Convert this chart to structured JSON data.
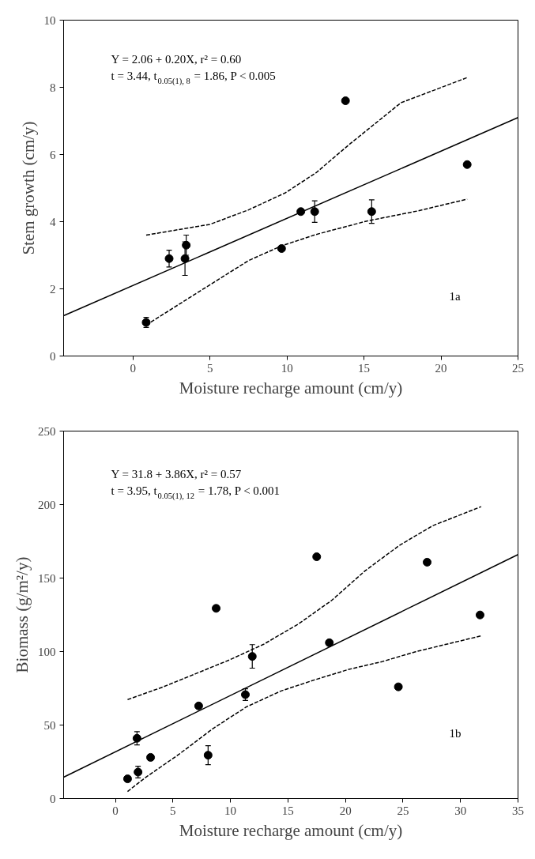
{
  "chart_data": [
    {
      "type": "scatter",
      "xlabel": "Moisture recharge amount (cm/y)",
      "ylabel": "Stem growth (cm/y)",
      "xlim": [
        -4.5,
        25
      ],
      "ylim": [
        0,
        10
      ],
      "xticks": [
        0,
        5,
        10,
        15,
        20,
        25
      ],
      "yticks": [
        0,
        2,
        4,
        6,
        8,
        10
      ],
      "grid": false,
      "marker": "circle",
      "annotations": [
        "Y = 2.06 + 0.20X, r² = 0.60",
        "t = 3.44, t$_{0.05(1), 8}$ = 1.86, P < 0.005",
        "1a"
      ],
      "series": [
        {
          "color": "#000000",
          "x": [
            0.86,
            2.35,
            3.38,
            3.46,
            9.65,
            10.9,
            11.8,
            13.8,
            15.5,
            21.7
          ],
          "values": [
            1.0,
            2.9,
            2.9,
            3.3,
            3.2,
            4.3,
            4.3,
            7.6,
            4.3,
            5.7
          ],
          "errors": [
            0.15,
            0.25,
            0.5,
            0.3,
            null,
            null,
            0.32,
            null,
            0.35,
            null
          ]
        },
        {
          "type": "line",
          "marker": "none",
          "line_style": "solid",
          "color": "#000000",
          "x": [
            -4.5,
            25
          ],
          "values": [
            1.2,
            7.1
          ]
        },
        {
          "type": "line",
          "marker": "none",
          "line_style": "dashed",
          "color": "#000000",
          "x": [
            0.86,
            5,
            7.5,
            9.9,
            11.9,
            14.1,
            17.4,
            21.7
          ],
          "values": [
            3.6,
            3.92,
            4.35,
            4.86,
            5.46,
            6.32,
            7.54,
            8.29
          ]
        },
        {
          "type": "line",
          "marker": "none",
          "line_style": "dashed",
          "color": "#000000",
          "x": [
            0.86,
            4.2,
            7.5,
            9.65,
            11.9,
            15.2,
            18.5,
            21.7
          ],
          "values": [
            0.92,
            1.89,
            2.84,
            3.28,
            3.62,
            4.02,
            4.32,
            4.67
          ]
        }
      ]
    },
    {
      "type": "scatter",
      "xlabel": "Moisture recharge amount (cm/y)",
      "ylabel": "Biomass (g/m²/y)",
      "xlim": [
        -4.5,
        35
      ],
      "ylim": [
        0,
        250
      ],
      "xticks": [
        0,
        5,
        10,
        15,
        20,
        25,
        30,
        35
      ],
      "yticks": [
        0,
        50,
        100,
        150,
        200,
        250
      ],
      "grid": false,
      "marker": "circle",
      "annotations": [
        "Y = 31.8 + 3.86X, r² = 0.57",
        "t = 3.95, t$_{0.05(1), 12}$ = 1.78, P < 0.001",
        "1b"
      ],
      "series": [
        {
          "color": "#000000",
          "x": [
            1.06,
            1.88,
            1.97,
            3.06,
            7.24,
            8.06,
            8.76,
            11.3,
            11.9,
            17.5,
            18.6,
            24.6,
            27.1,
            31.7
          ],
          "values": [
            13.4,
            41,
            18,
            28,
            63,
            29.5,
            129.4,
            70.7,
            96.7,
            164.5,
            106,
            76,
            160.8,
            124.9
          ],
          "errors": [
            null,
            4.5,
            4,
            2,
            null,
            6.5,
            null,
            4,
            8,
            null,
            null,
            null,
            null,
            null
          ]
        },
        {
          "type": "line",
          "marker": "none",
          "line_style": "solid",
          "color": "#000000",
          "x": [
            -4.5,
            35
          ],
          "values": [
            14.5,
            166
          ]
        },
        {
          "type": "line",
          "marker": "none",
          "line_style": "dashed",
          "color": "#000000",
          "x": [
            1.06,
            4.1,
            7.0,
            10,
            12.9,
            15.9,
            18.8,
            21.7,
            24.7,
            27.6,
            31.8
          ],
          "values": [
            67.3,
            75.8,
            85,
            94.6,
            105,
            118.7,
            134.8,
            154.9,
            172.3,
            185.7,
            198.6
          ]
        },
        {
          "type": "line",
          "marker": "none",
          "line_style": "dashed",
          "color": "#000000",
          "x": [
            1.06,
            2.6,
            5.56,
            8.5,
            11.4,
            14.4,
            17.3,
            20.3,
            23.2,
            26.1,
            31.8
          ],
          "values": [
            4.8,
            14.2,
            30.3,
            47.7,
            62.4,
            73.2,
            80.7,
            87.9,
            93.2,
            99.9,
            110.7
          ]
        }
      ]
    }
  ]
}
